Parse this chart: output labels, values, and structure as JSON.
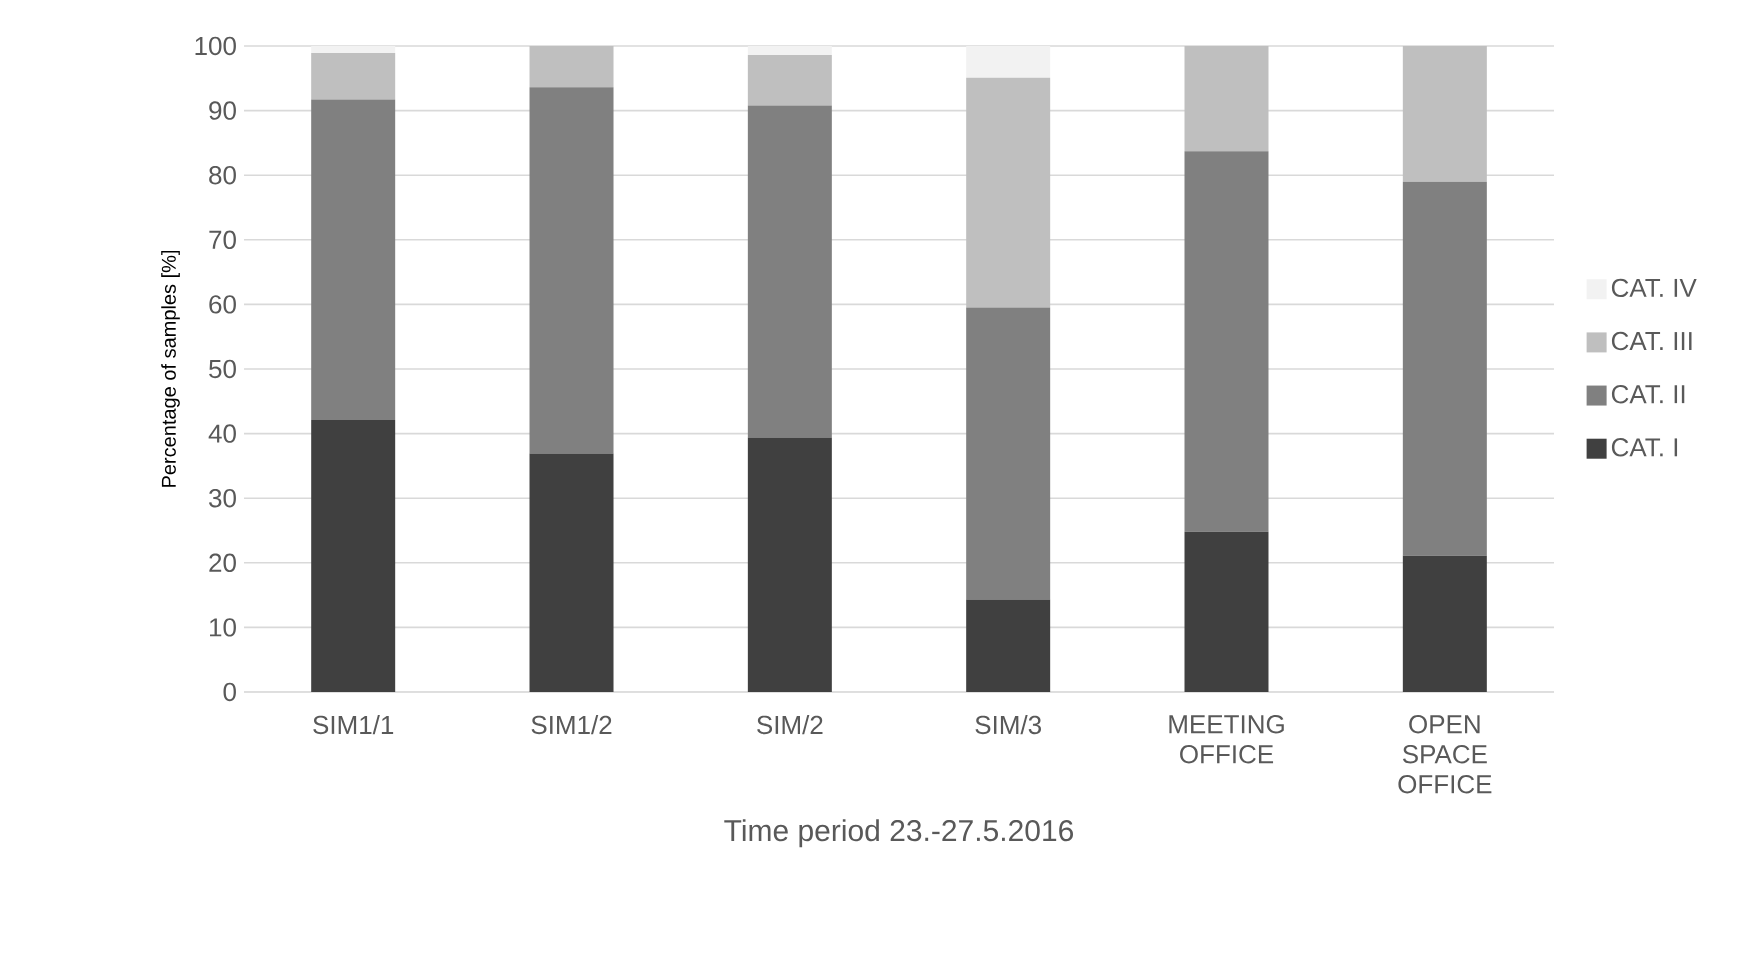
{
  "chart_data": {
    "type": "bar",
    "stacked": true,
    "xlabel": "Time period 23.-27.5.2016",
    "ylabel": "Percentage of samples [%]",
    "categories": [
      "SIM1/1",
      "SIM1/2",
      "SIM/2",
      "SIM/3",
      "MEETING OFFICE",
      "OPEN SPACE OFFICE"
    ],
    "series": [
      {
        "name": "CAT. I",
        "color": "#404040",
        "values": [
          42.1,
          36.9,
          39.4,
          14.3,
          24.8,
          21.1
        ]
      },
      {
        "name": "CAT. II",
        "color": "#808080",
        "values": [
          49.6,
          56.7,
          51.4,
          45.2,
          58.9,
          57.9
        ]
      },
      {
        "name": "CAT. III",
        "color": "#bfbfbf",
        "values": [
          7.2,
          6.4,
          7.8,
          35.6,
          16.3,
          21.0
        ]
      },
      {
        "name": "CAT. IV",
        "color": "#f2f2f2",
        "values": [
          1.1,
          null,
          1.4,
          4.9,
          null,
          null
        ]
      }
    ],
    "ylim": [
      0,
      100
    ],
    "yticks": [
      0,
      10,
      20,
      30,
      40,
      50,
      60,
      70,
      80,
      90,
      100
    ],
    "grid": "y",
    "legend": "right"
  }
}
